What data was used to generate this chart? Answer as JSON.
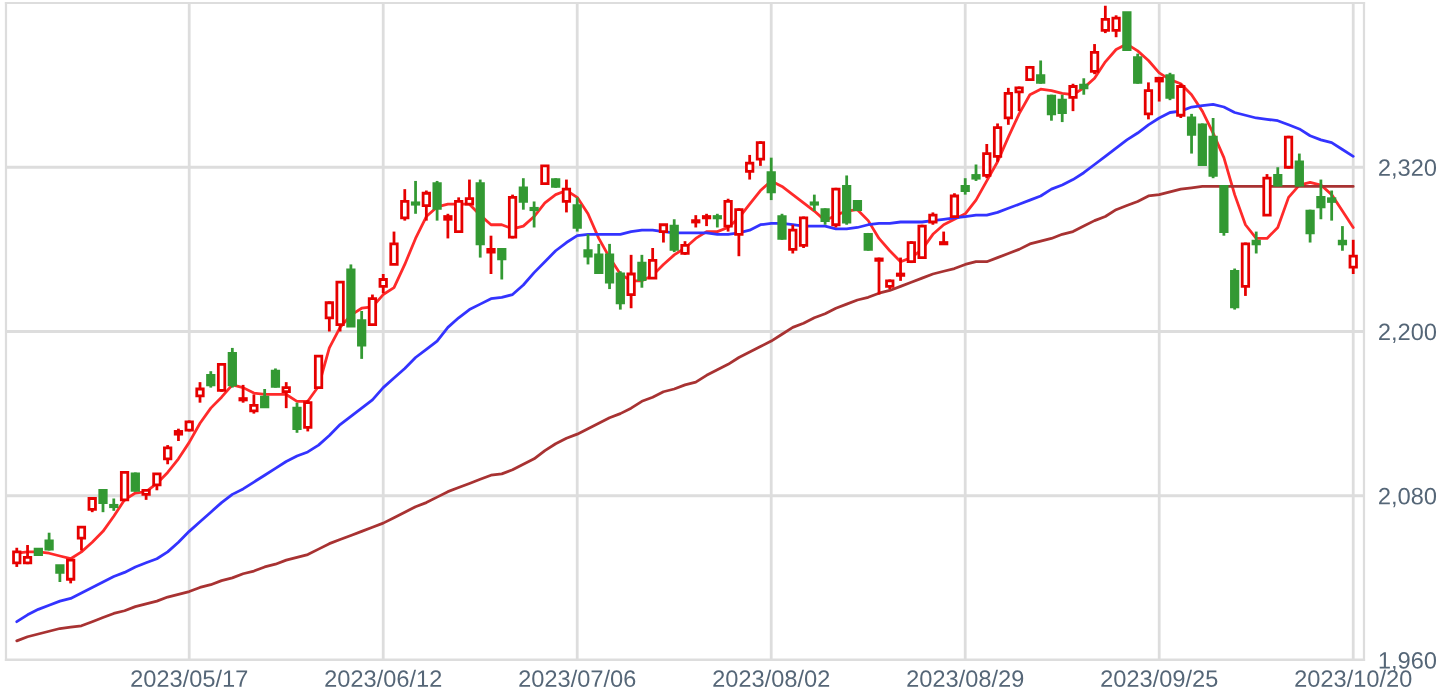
{
  "chart_data": {
    "type": "candlestick",
    "categories": [
      null,
      null,
      null,
      null,
      null,
      null,
      null,
      null,
      null,
      null,
      null,
      null,
      null,
      null,
      null,
      null,
      "2023/05/17",
      null,
      null,
      null,
      null,
      null,
      null,
      null,
      null,
      null,
      null,
      null,
      null,
      null,
      null,
      null,
      null,
      null,
      "2023/06/12",
      null,
      null,
      null,
      null,
      null,
      null,
      null,
      null,
      null,
      null,
      null,
      null,
      null,
      null,
      null,
      null,
      null,
      "2023/07/06",
      null,
      null,
      null,
      null,
      null,
      null,
      null,
      null,
      null,
      null,
      null,
      null,
      null,
      null,
      null,
      null,
      null,
      "2023/08/02",
      null,
      null,
      null,
      null,
      null,
      null,
      null,
      null,
      null,
      null,
      null,
      null,
      null,
      null,
      null,
      null,
      null,
      "2023/08/29",
      null,
      null,
      null,
      null,
      null,
      null,
      null,
      null,
      null,
      null,
      null,
      null,
      null,
      null,
      null,
      null,
      null,
      "2023/09/25",
      null,
      null,
      null,
      null,
      null,
      null,
      null,
      null,
      null,
      null,
      null,
      null,
      null,
      null,
      null,
      null,
      null,
      "2023/10/20"
    ],
    "ohlc": [
      [
        2031,
        2042,
        2028,
        2039
      ],
      [
        2031,
        2044,
        2030,
        2035
      ],
      [
        2041,
        2041,
        2037,
        2037
      ],
      [
        2047,
        2053,
        2040,
        2041
      ],
      [
        2029,
        2029,
        2017,
        2024
      ],
      [
        2019,
        2033,
        2016,
        2033
      ],
      [
        2049,
        2057,
        2040,
        2057
      ],
      [
        2070,
        2078,
        2068,
        2078
      ],
      [
        2084,
        2084,
        2068,
        2075
      ],
      [
        2073,
        2078,
        2069,
        2072
      ],
      [
        2077,
        2097,
        2076,
        2097
      ],
      [
        2096,
        2097,
        2083,
        2084
      ],
      [
        2081,
        2084,
        2077,
        2084
      ],
      [
        2088,
        2096,
        2084,
        2096
      ],
      [
        2107,
        2117,
        2103,
        2115
      ],
      [
        2125,
        2129,
        2120,
        2127
      ],
      [
        2128,
        2135,
        2127,
        2134
      ],
      [
        2153,
        2163,
        2148,
        2158
      ],
      [
        2168,
        2171,
        2159,
        2161
      ],
      [
        2157,
        2176,
        2156,
        2176
      ],
      [
        2184,
        2188,
        2159,
        2161
      ],
      [
        2150,
        2161,
        2148,
        2151
      ],
      [
        2142,
        2154,
        2140,
        2146
      ],
      [
        2152,
        2158,
        2145,
        2145
      ],
      [
        2171,
        2173,
        2159,
        2160
      ],
      [
        2156,
        2163,
        2144,
        2159
      ],
      [
        2144,
        2148,
        2126,
        2129
      ],
      [
        2130,
        2150,
        2127,
        2148
      ],
      [
        2159,
        2182,
        2158,
        2182
      ],
      [
        2210,
        2222,
        2200,
        2221
      ],
      [
        2205,
        2236,
        2200,
        2236
      ],
      [
        2245,
        2249,
        2204,
        2204
      ],
      [
        2208,
        2215,
        2180,
        2190
      ],
      [
        2205,
        2227,
        2204,
        2224
      ],
      [
        2233,
        2242,
        2228,
        2238
      ],
      [
        2249,
        2273,
        2249,
        2264
      ],
      [
        2283,
        2304,
        2281,
        2295
      ],
      [
        2294,
        2310,
        2286,
        2293
      ],
      [
        2292,
        2303,
        2281,
        2301
      ],
      [
        2308,
        2310,
        2281,
        2290
      ],
      [
        2282,
        2286,
        2268,
        2284
      ],
      [
        2273,
        2298,
        2272,
        2295
      ],
      [
        2293,
        2311,
        2293,
        2297
      ],
      [
        2308,
        2311,
        2254,
        2264
      ],
      [
        2258,
        2270,
        2242,
        2260
      ],
      [
        2260,
        2261,
        2238,
        2253
      ],
      [
        2269,
        2300,
        2268,
        2298
      ],
      [
        2305,
        2312,
        2289,
        2295
      ],
      [
        2290,
        2295,
        2276,
        2289
      ],
      [
        2308,
        2321,
        2308,
        2321
      ],
      [
        2311,
        2312,
        2305,
        2306
      ],
      [
        2295,
        2311,
        2287,
        2304
      ],
      [
        2292,
        2298,
        2273,
        2276
      ],
      [
        2259,
        2271,
        2249,
        2255
      ],
      [
        2256,
        2264,
        2242,
        2243
      ],
      [
        2256,
        2264,
        2231,
        2236
      ],
      [
        2242,
        2244,
        2216,
        2221
      ],
      [
        2227,
        2256,
        2217,
        2242
      ],
      [
        2250,
        2256,
        2232,
        2238
      ],
      [
        2239,
        2261,
        2239,
        2252
      ],
      [
        2273,
        2278,
        2265,
        2278
      ],
      [
        2277,
        2282,
        2258,
        2260
      ],
      [
        2257,
        2266,
        2256,
        2263
      ],
      [
        2280,
        2285,
        2276,
        2281
      ],
      [
        2283,
        2286,
        2277,
        2284
      ],
      [
        2284,
        2286,
        2276,
        2283
      ],
      [
        2277,
        2297,
        2273,
        2295
      ],
      [
        2271,
        2290,
        2255,
        2289
      ],
      [
        2317,
        2329,
        2311,
        2323
      ],
      [
        2326,
        2339,
        2321,
        2338
      ],
      [
        2316,
        2327,
        2296,
        2302
      ],
      [
        2284,
        2286,
        2267,
        2268
      ],
      [
        2260,
        2278,
        2257,
        2274
      ],
      [
        2263,
        2284,
        2261,
        2283
      ],
      [
        2294,
        2300,
        2288,
        2293
      ],
      [
        2289,
        2290,
        2278,
        2281
      ],
      [
        2278,
        2305,
        2276,
        2304
      ],
      [
        2306,
        2314,
        2278,
        2280
      ],
      [
        2295,
        2296,
        2288,
        2289
      ],
      [
        2271,
        2272,
        2259,
        2260
      ],
      [
        2252,
        2254,
        2227,
        2253
      ],
      [
        2233,
        2238,
        2231,
        2237
      ],
      [
        2241,
        2254,
        2237,
        2242
      ],
      [
        2251,
        2266,
        2250,
        2265
      ],
      [
        2254,
        2278,
        2253,
        2277
      ],
      [
        2280,
        2287,
        2278,
        2285
      ],
      [
        2264,
        2273,
        2264,
        2265
      ],
      [
        2284,
        2301,
        2284,
        2299
      ],
      [
        2306,
        2312,
        2300,
        2303
      ],
      [
        2314,
        2322,
        2310,
        2312
      ],
      [
        2314,
        2337,
        2312,
        2330
      ],
      [
        2328,
        2352,
        2324,
        2349
      ],
      [
        2356,
        2378,
        2351,
        2374
      ],
      [
        2375,
        2379,
        2361,
        2378
      ],
      [
        2384,
        2394,
        2384,
        2393
      ],
      [
        2387,
        2398,
        2381,
        2382
      ],
      [
        2372,
        2373,
        2354,
        2359
      ],
      [
        2369,
        2373,
        2353,
        2360
      ],
      [
        2371,
        2381,
        2361,
        2379
      ],
      [
        2380,
        2385,
        2373,
        2378
      ],
      [
        2390,
        2410,
        2388,
        2404
      ],
      [
        2420,
        2438,
        2418,
        2428
      ],
      [
        2420,
        2431,
        2415,
        2429
      ],
      [
        2433,
        2433,
        2405,
        2406
      ],
      [
        2400,
        2403,
        2381,
        2382
      ],
      [
        2359,
        2382,
        2355,
        2376
      ],
      [
        2383,
        2386,
        2368,
        2385
      ],
      [
        2387,
        2389,
        2369,
        2371
      ],
      [
        2358,
        2381,
        2356,
        2379
      ],
      [
        2356,
        2359,
        2330,
        2344
      ],
      [
        2351,
        2352,
        2321,
        2322
      ],
      [
        2342,
        2356,
        2312,
        2314
      ],
      [
        2306,
        2306,
        2270,
        2273
      ],
      [
        2244,
        2246,
        2216,
        2218
      ],
      [
        2233,
        2265,
        2226,
        2264
      ],
      [
        2266,
        2273,
        2257,
        2264
      ],
      [
        2285,
        2315,
        2285,
        2312
      ],
      [
        2314,
        2320,
        2306,
        2307
      ],
      [
        2320,
        2343,
        2319,
        2342
      ],
      [
        2324,
        2330,
        2306,
        2307
      ],
      [
        2288,
        2289,
        2265,
        2272
      ],
      [
        2298,
        2311,
        2282,
        2291
      ],
      [
        2297,
        2303,
        2281,
        2295
      ],
      [
        2266,
        2277,
        2259,
        2264
      ],
      [
        2247,
        2267,
        2242,
        2255
      ]
    ],
    "colors": [
      "#e60000",
      "#e60000",
      "#339933",
      "#339933",
      "#339933",
      "#e60000",
      "#e60000",
      "#e60000",
      "#339933",
      "#339933",
      "#e60000",
      "#339933",
      "#e60000",
      "#e60000",
      "#e60000",
      "#e60000",
      "#e60000",
      "#e60000",
      "#339933",
      "#e60000",
      "#339933",
      "#e60000",
      "#e60000",
      "#339933",
      "#339933",
      "#e60000",
      "#339933",
      "#e60000",
      "#e60000",
      "#e60000",
      "#e60000",
      "#339933",
      "#339933",
      "#e60000",
      "#e60000",
      "#e60000",
      "#e60000",
      "#339933",
      "#e60000",
      "#339933",
      "#e60000",
      "#e60000",
      "#e60000",
      "#339933",
      "#e60000",
      "#339933",
      "#e60000",
      "#339933",
      "#339933",
      "#e60000",
      "#339933",
      "#e60000",
      "#339933",
      "#339933",
      "#339933",
      "#339933",
      "#339933",
      "#e60000",
      "#339933",
      "#e60000",
      "#e60000",
      "#339933",
      "#e60000",
      "#e60000",
      "#e60000",
      "#339933",
      "#e60000",
      "#e60000",
      "#e60000",
      "#e60000",
      "#339933",
      "#339933",
      "#e60000",
      "#e60000",
      "#339933",
      "#339933",
      "#e60000",
      "#339933",
      "#339933",
      "#339933",
      "#e60000",
      "#e60000",
      "#e60000",
      "#e60000",
      "#e60000",
      "#e60000",
      "#e60000",
      "#e60000",
      "#339933",
      "#339933",
      "#e60000",
      "#e60000",
      "#e60000",
      "#e60000",
      "#e60000",
      "#339933",
      "#339933",
      "#339933",
      "#e60000",
      "#339933",
      "#e60000",
      "#e60000",
      "#e60000",
      "#339933",
      "#339933",
      "#e60000",
      "#e60000",
      "#339933",
      "#e60000",
      "#339933",
      "#339933",
      "#339933",
      "#339933",
      "#339933",
      "#e60000",
      "#339933",
      "#e60000",
      "#339933",
      "#e60000",
      "#339933",
      "#339933",
      "#339933",
      "#339933",
      "#339933",
      "#e60000"
    ],
    "series": [
      {
        "type": "line",
        "color": "#ff2a2a",
        "values": [
          2038,
          2039,
          2039,
          2038,
          2036,
          2034,
          2039,
          2046,
          2054,
          2065,
          2077,
          2082,
          2083,
          2089,
          2097,
          2107,
          2119,
          2133,
          2144,
          2152,
          2161,
          2159,
          2155,
          2154,
          2154,
          2154,
          2149,
          2149,
          2160,
          2188,
          2203,
          2212,
          2217,
          2218,
          2227,
          2232,
          2249,
          2268,
          2284,
          2291,
          2293,
          2293,
          2293,
          2285,
          2278,
          2278,
          2275,
          2277,
          2284,
          2294,
          2300,
          2303,
          2298,
          2286,
          2268,
          2254,
          2242,
          2237,
          2237,
          2241,
          2249,
          2256,
          2261,
          2268,
          2273,
          2273,
          2276,
          2283,
          2293,
          2303,
          2310,
          2306,
          2300,
          2294,
          2288,
          2281,
          2285,
          2288,
          2289,
          2281,
          2268,
          2259,
          2251,
          2254,
          2260,
          2271,
          2278,
          2282,
          2286,
          2296,
          2310,
          2324,
          2342,
          2359,
          2373,
          2377,
          2376,
          2374,
          2373,
          2378,
          2385,
          2397,
          2406,
          2410,
          2405,
          2398,
          2389,
          2384,
          2381,
          2373,
          2361,
          2345,
          2327,
          2300,
          2278,
          2268,
          2268,
          2276,
          2298,
          2307,
          2309,
          2307,
          2300,
          2288,
          2276
        ]
      },
      {
        "type": "line",
        "color": "#3333ff",
        "values": [
          1988,
          1993,
          1997,
          2000,
          2003,
          2005,
          2009,
          2013,
          2017,
          2021,
          2024,
          2028,
          2031,
          2034,
          2039,
          2046,
          2054,
          2061,
          2068,
          2075,
          2081,
          2085,
          2090,
          2095,
          2100,
          2105,
          2109,
          2112,
          2117,
          2124,
          2132,
          2138,
          2144,
          2150,
          2159,
          2166,
          2173,
          2181,
          2187,
          2193,
          2203,
          2210,
          2216,
          2220,
          2224,
          2225,
          2227,
          2234,
          2243,
          2251,
          2259,
          2265,
          2270,
          2271,
          2271,
          2271,
          2271,
          2273,
          2274,
          2274,
          2273,
          2272,
          2272,
          2272,
          2272,
          2271,
          2271,
          2272,
          2274,
          2278,
          2279,
          2279,
          2278,
          2277,
          2277,
          2277,
          2275,
          2275,
          2276,
          2278,
          2279,
          2279,
          2280,
          2280,
          2280,
          2281,
          2282,
          2283,
          2284,
          2285,
          2285,
          2287,
          2290,
          2293,
          2296,
          2299,
          2304,
          2307,
          2311,
          2316,
          2322,
          2328,
          2334,
          2340,
          2345,
          2351,
          2356,
          2360,
          2361,
          2364,
          2365,
          2366,
          2364,
          2360,
          2358,
          2356,
          2355,
          2354,
          2351,
          2348,
          2343,
          2340,
          2338,
          2333,
          2328
        ]
      },
      {
        "type": "line",
        "color": "#a83232",
        "values": [
          1974,
          1977,
          1979,
          1981,
          1983,
          1984,
          1985,
          1988,
          1991,
          1994,
          1996,
          1999,
          2001,
          2003,
          2006,
          2008,
          2010,
          2013,
          2015,
          2018,
          2020,
          2023,
          2025,
          2028,
          2030,
          2033,
          2035,
          2037,
          2041,
          2045,
          2048,
          2051,
          2054,
          2057,
          2060,
          2064,
          2068,
          2072,
          2075,
          2079,
          2083,
          2086,
          2089,
          2092,
          2095,
          2096,
          2099,
          2103,
          2107,
          2113,
          2118,
          2122,
          2125,
          2129,
          2133,
          2137,
          2140,
          2144,
          2149,
          2152,
          2156,
          2158,
          2161,
          2163,
          2168,
          2172,
          2176,
          2181,
          2185,
          2189,
          2193,
          2198,
          2203,
          2206,
          2210,
          2213,
          2217,
          2220,
          2223,
          2225,
          2228,
          2230,
          2233,
          2236,
          2239,
          2242,
          2244,
          2246,
          2249,
          2251,
          2251,
          2254,
          2257,
          2260,
          2264,
          2266,
          2268,
          2271,
          2273,
          2277,
          2281,
          2284,
          2289,
          2292,
          2295,
          2299,
          2300,
          2302,
          2304,
          2305,
          2306,
          2306,
          2306,
          2306,
          2306,
          2306,
          2306,
          2306,
          2306,
          2306,
          2306,
          2306,
          2306,
          2306,
          2306
        ]
      }
    ],
    "ylim": [
      1960,
      2440
    ],
    "yticks": [
      {
        "value": 1960,
        "label": "1,960"
      },
      {
        "value": 2080,
        "label": "2,080"
      },
      {
        "value": 2200,
        "label": "2,200"
      },
      {
        "value": 2320,
        "label": "2,320"
      }
    ],
    "grid": true
  }
}
